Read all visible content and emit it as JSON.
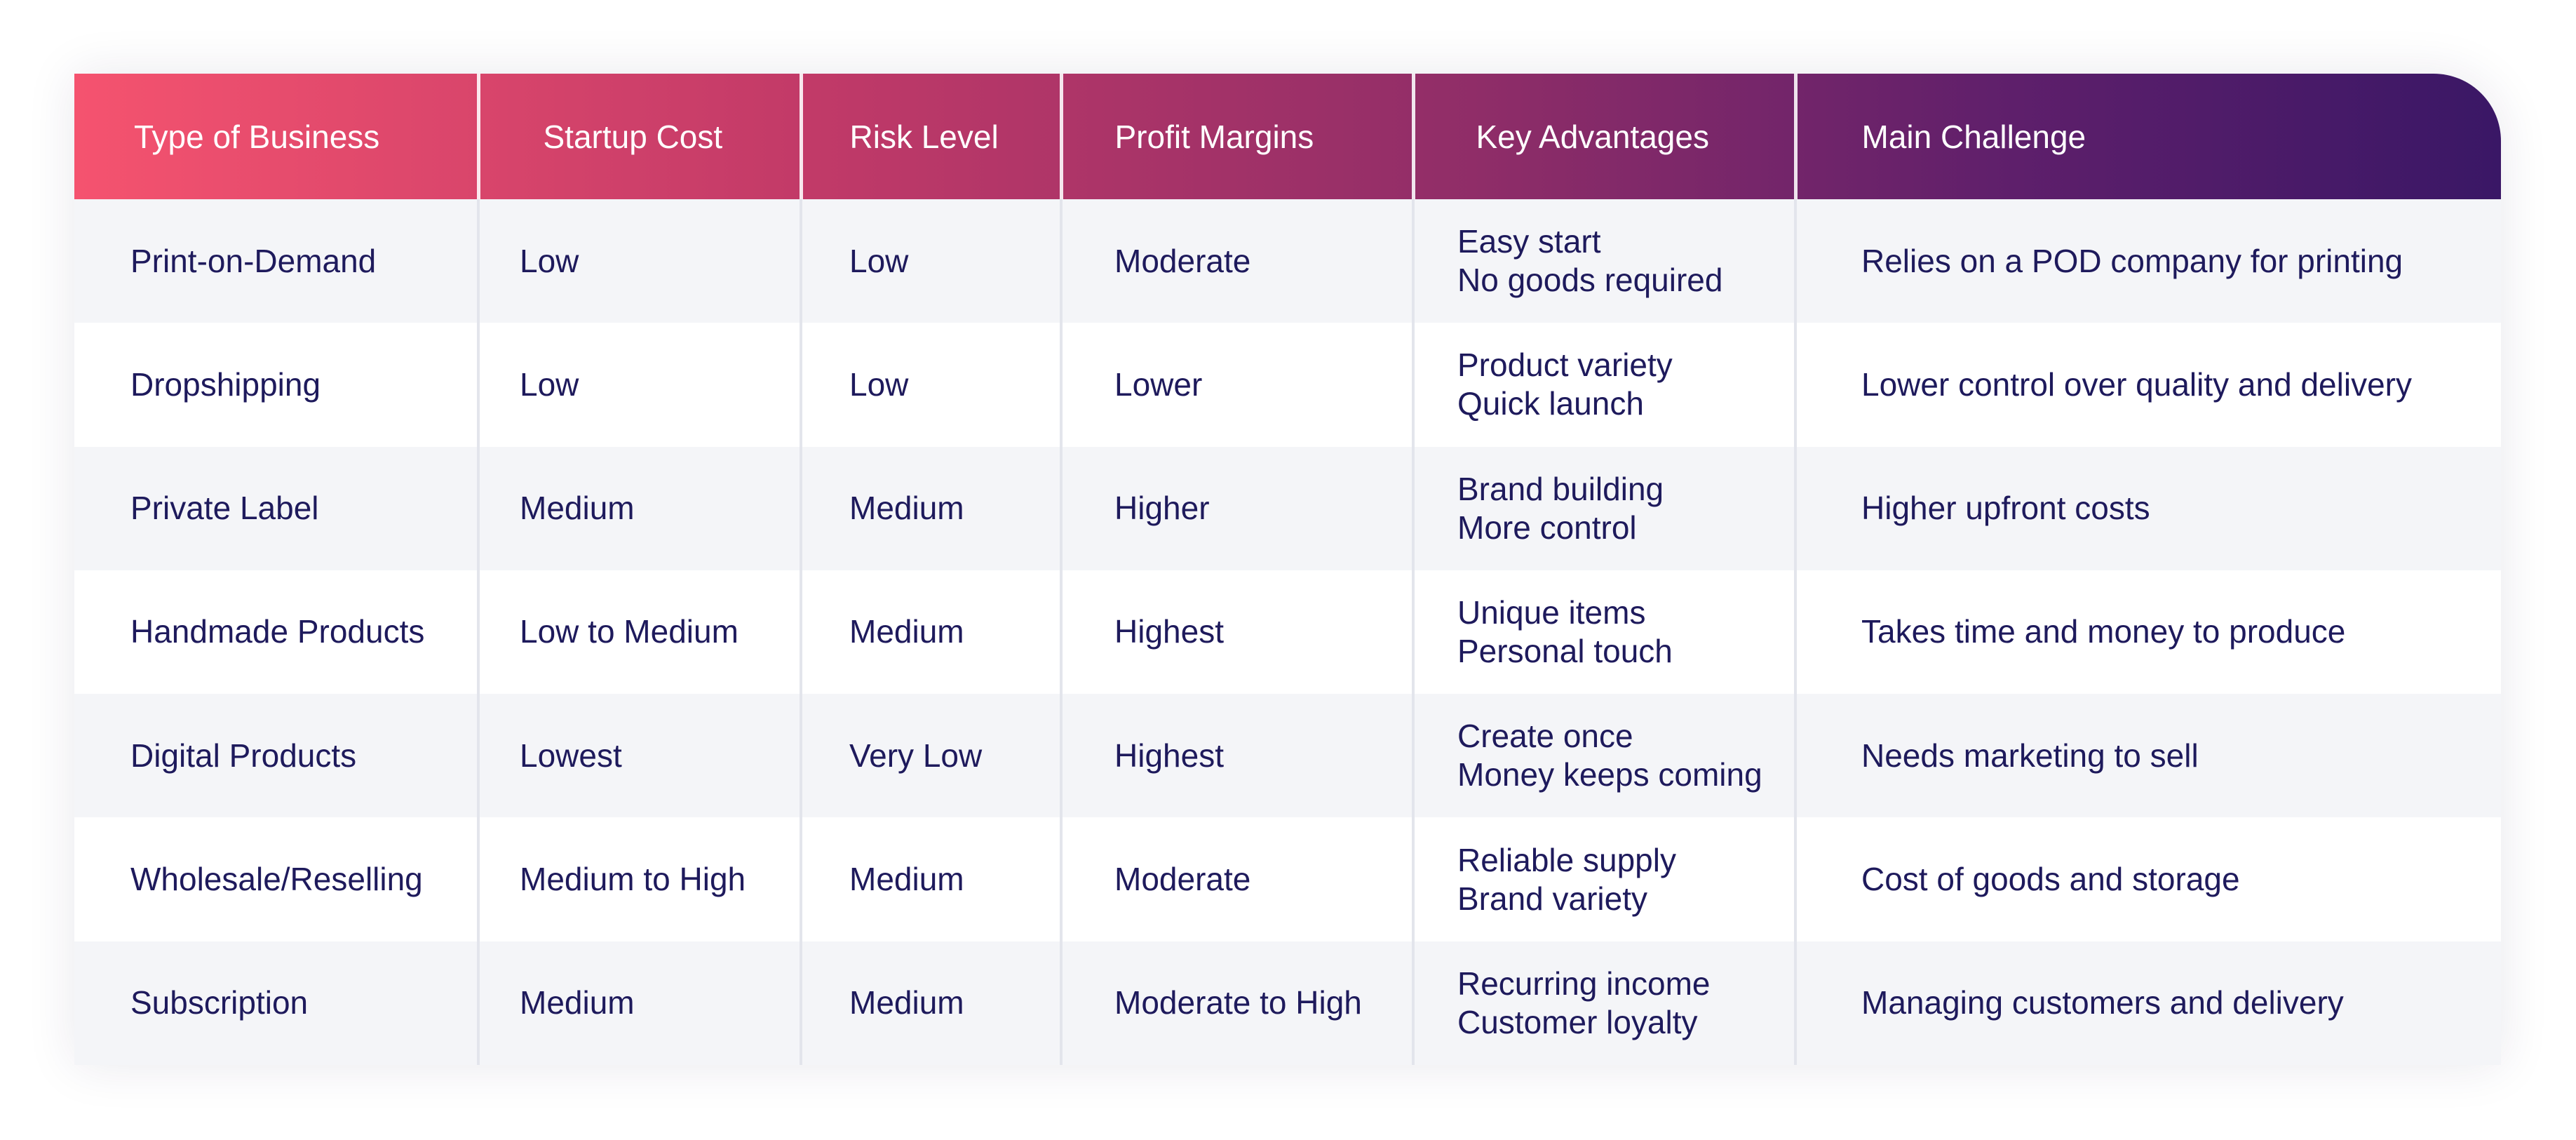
{
  "table": {
    "headers": [
      "Type of Business",
      "Startup Cost",
      "Risk Level",
      "Profit Margins",
      "Key Advantages",
      "Main Challenge"
    ],
    "rows": [
      {
        "type": "Print-on-Demand",
        "startup_cost": "Low",
        "risk_level": "Low",
        "profit_margins": "Moderate",
        "advantages": [
          "Easy start",
          "No goods required"
        ],
        "challenge": "Relies on a POD company for printing"
      },
      {
        "type": "Dropshipping",
        "startup_cost": "Low",
        "risk_level": "Low",
        "profit_margins": "Lower",
        "advantages": [
          "Product variety",
          "Quick launch"
        ],
        "challenge": "Lower control over quality and delivery"
      },
      {
        "type": "Private Label",
        "startup_cost": "Medium",
        "risk_level": "Medium",
        "profit_margins": "Higher",
        "advantages": [
          "Brand building",
          "More control"
        ],
        "challenge": "Higher upfront costs"
      },
      {
        "type": "Handmade Products",
        "startup_cost": "Low to Medium",
        "risk_level": "Medium",
        "profit_margins": "Highest",
        "advantages": [
          "Unique items",
          "Personal touch"
        ],
        "challenge": "Takes time and money to produce"
      },
      {
        "type": "Digital Products",
        "startup_cost": "Lowest",
        "risk_level": "Very Low",
        "profit_margins": "Highest",
        "advantages": [
          "Create once",
          "Money keeps coming"
        ],
        "challenge": "Needs marketing to sell"
      },
      {
        "type": "Wholesale/Reselling",
        "startup_cost": "Medium to High",
        "risk_level": "Medium",
        "profit_margins": "Moderate",
        "advantages": [
          "Reliable supply",
          "Brand variety"
        ],
        "challenge": "Cost of goods and storage"
      },
      {
        "type": "Subscription",
        "startup_cost": "Medium",
        "risk_level": "Medium",
        "profit_margins": "Moderate to High",
        "advantages": [
          "Recurring income",
          "Customer loyalty"
        ],
        "challenge": "Managing customers and delivery"
      }
    ]
  },
  "colors": {
    "header_gradient_start": "#f5536f",
    "header_gradient_end": "#3a1766",
    "text": "#1e1a5c",
    "row_alt": "#f4f5f8"
  }
}
